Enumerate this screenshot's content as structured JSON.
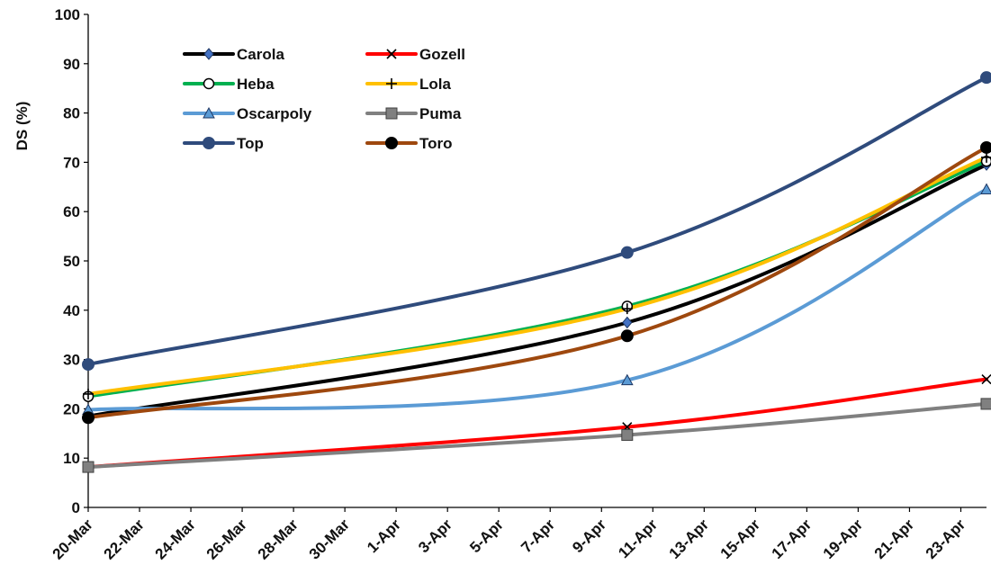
{
  "chart_data": {
    "type": "line",
    "title": "",
    "xlabel": "",
    "ylabel": "DS (%)",
    "ylim": [
      0,
      100
    ],
    "yticks": [
      0,
      10,
      20,
      30,
      40,
      50,
      60,
      70,
      80,
      90,
      100
    ],
    "xlim": [
      "2024-03-20",
      "2024-04-24"
    ],
    "xtick_labels": [
      "20-Mar",
      "22-Mar",
      "24-Mar",
      "26-Mar",
      "28-Mar",
      "30-Mar",
      "1-Apr",
      "3-Apr",
      "5-Apr",
      "7-Apr",
      "9-Apr",
      "11-Apr",
      "13-Apr",
      "15-Apr",
      "17-Apr",
      "19-Apr",
      "21-Apr",
      "23-Apr"
    ],
    "x": [
      "2024-03-20",
      "2024-04-10",
      "2024-04-24"
    ],
    "grid": false,
    "legend_position": "top-left",
    "series": [
      {
        "name": "Carola",
        "values": [
          18.5,
          37.5,
          69.5
        ],
        "color": "#000000",
        "marker": "diamond",
        "marker_color": "#4472c4"
      },
      {
        "name": "Gozell",
        "values": [
          8.2,
          16.3,
          26.0
        ],
        "color": "#ff0000",
        "marker": "x",
        "marker_color": "#000000"
      },
      {
        "name": "Heba",
        "values": [
          22.5,
          40.8,
          70.2
        ],
        "color": "#00b050",
        "marker": "circle-open",
        "marker_color": "#000000"
      },
      {
        "name": "Lola",
        "values": [
          23.0,
          40.3,
          71.0
        ],
        "color": "#ffc000",
        "marker": "plus",
        "marker_color": "#000000"
      },
      {
        "name": "Oscarpoly",
        "values": [
          19.8,
          25.8,
          64.5
        ],
        "color": "#5b9bd5",
        "marker": "triangle",
        "marker_color": "#5b9bd5"
      },
      {
        "name": "Puma",
        "values": [
          8.2,
          14.7,
          21.0
        ],
        "color": "#808080",
        "marker": "square",
        "marker_color": "#808080"
      },
      {
        "name": "Top",
        "values": [
          29.0,
          51.7,
          87.2
        ],
        "color": "#2f4b7c",
        "marker": "circle",
        "marker_color": "#2f4b7c"
      },
      {
        "name": "Toro",
        "values": [
          18.2,
          34.8,
          73.0
        ],
        "color": "#9e480e",
        "marker": "circle",
        "marker_color": "#000000"
      }
    ]
  }
}
